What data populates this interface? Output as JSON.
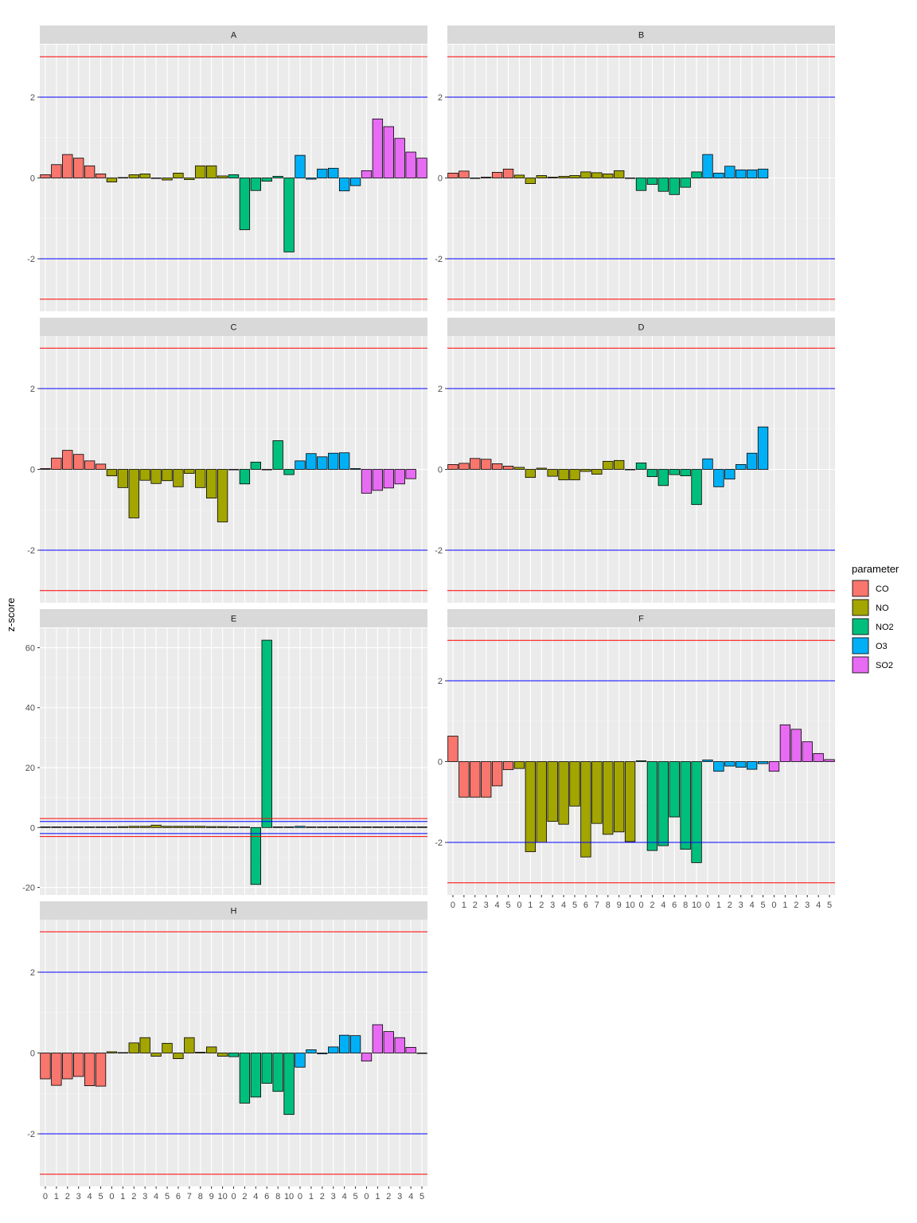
{
  "chart_data": {
    "type": "bar",
    "ylabel": "z-score",
    "xlabel": "",
    "x_tick_labels": [
      "0",
      "1",
      "2",
      "3",
      "4",
      "5",
      "0",
      "1",
      "2",
      "3",
      "4",
      "5",
      "6",
      "7",
      "8",
      "9",
      "10",
      "0",
      "2",
      "4",
      "6",
      "8",
      "10",
      "0",
      "1",
      "2",
      "3",
      "4",
      "5",
      "0",
      "1",
      "2",
      "3",
      "4",
      "5"
    ],
    "x_tick_parameter": [
      "CO",
      "CO",
      "CO",
      "CO",
      "CO",
      "CO",
      "NO",
      "NO",
      "NO",
      "NO",
      "NO",
      "NO",
      "NO",
      "NO",
      "NO",
      "NO",
      "NO",
      "NO2",
      "NO2",
      "NO2",
      "NO2",
      "NO2",
      "NO2",
      "O3",
      "O3",
      "O3",
      "O3",
      "O3",
      "O3",
      "SO2",
      "SO2",
      "SO2",
      "SO2",
      "SO2",
      "SO2"
    ],
    "reference_lines": [
      {
        "y": 3,
        "color": "#ff0000"
      },
      {
        "y": 2,
        "color": "#0000ff"
      },
      {
        "y": -2,
        "color": "#0000ff"
      },
      {
        "y": -3,
        "color": "#ff0000"
      }
    ],
    "legend": {
      "title": "parameter",
      "position": "right",
      "items": [
        {
          "label": "CO",
          "color": "#F8766D"
        },
        {
          "label": "NO",
          "color": "#A3A500"
        },
        {
          "label": "NO2",
          "color": "#00BF7D"
        },
        {
          "label": "O3",
          "color": "#00B0F6"
        },
        {
          "label": "SO2",
          "color": "#E76BF3"
        }
      ]
    },
    "panels": [
      {
        "strip": "A",
        "ylim": [
          -3.3,
          3.3
        ],
        "yticks": [
          -2,
          0,
          2
        ],
        "values": [
          0.08,
          0.33,
          0.58,
          0.49,
          0.3,
          0.1,
          -0.1,
          0.01,
          0.08,
          0.1,
          0.0,
          -0.05,
          0.12,
          -0.04,
          0.3,
          0.3,
          0.05,
          0.08,
          -1.28,
          -0.31,
          -0.08,
          0.04,
          -1.83,
          0.56,
          -0.03,
          0.22,
          0.24,
          -0.32,
          -0.19,
          0.18,
          1.46,
          1.27,
          0.98,
          0.64,
          0.49
        ]
      },
      {
        "strip": "B",
        "ylim": [
          -3.3,
          3.3
        ],
        "yticks": [
          -2,
          0,
          2
        ],
        "values": [
          0.12,
          0.17,
          0.0,
          0.02,
          0.14,
          0.22,
          0.07,
          -0.14,
          0.06,
          0.02,
          0.04,
          0.06,
          0.15,
          0.13,
          0.1,
          0.18,
          0.0,
          -0.31,
          -0.16,
          -0.33,
          -0.41,
          -0.23,
          0.15,
          0.58,
          0.12,
          0.29,
          0.2,
          0.2,
          0.22,
          null,
          null,
          null,
          null,
          null,
          null
        ]
      },
      {
        "strip": "C",
        "ylim": [
          -3.3,
          3.3
        ],
        "yticks": [
          -2,
          0,
          2
        ],
        "values": [
          0.02,
          0.28,
          0.47,
          0.37,
          0.21,
          0.13,
          -0.16,
          -0.45,
          -1.2,
          -0.27,
          -0.35,
          -0.28,
          -0.43,
          -0.1,
          -0.45,
          -0.71,
          -1.3,
          0.0,
          -0.36,
          0.18,
          0.0,
          0.71,
          -0.13,
          0.21,
          0.39,
          0.31,
          0.4,
          0.41,
          0.02,
          -0.59,
          -0.52,
          -0.46,
          -0.36,
          -0.23,
          null
        ]
      },
      {
        "strip": "D",
        "ylim": [
          -3.3,
          3.3
        ],
        "yticks": [
          -2,
          0,
          2
        ],
        "values": [
          0.12,
          0.15,
          0.27,
          0.25,
          0.14,
          0.08,
          0.05,
          -0.2,
          0.03,
          -0.17,
          -0.26,
          -0.26,
          -0.05,
          -0.12,
          0.2,
          0.22,
          0.0,
          0.16,
          -0.18,
          -0.4,
          -0.13,
          -0.16,
          -0.87,
          0.26,
          -0.43,
          -0.24,
          0.12,
          0.4,
          1.05,
          null,
          null,
          null,
          null,
          null,
          null
        ]
      },
      {
        "strip": "E",
        "ylim": [
          -22.5,
          66.5
        ],
        "yticks": [
          -20,
          0,
          20,
          40,
          60
        ],
        "values": [
          0.2,
          0.2,
          0.2,
          0.2,
          0.2,
          0.2,
          0.2,
          0.3,
          0.4,
          0.4,
          0.8,
          0.4,
          0.4,
          0.4,
          0.4,
          0.3,
          0.3,
          0.2,
          0.2,
          -19.0,
          62.5,
          0.2,
          0.2,
          0.4,
          0.2,
          0.2,
          0.2,
          0.2,
          0.2,
          0.2,
          0.2,
          0.2,
          0.2,
          0.2,
          0.2
        ]
      },
      {
        "strip": "F",
        "ylim": [
          -3.3,
          3.3
        ],
        "yticks": [
          -2,
          0,
          2
        ],
        "values": [
          0.63,
          -0.88,
          -0.88,
          -0.88,
          -0.6,
          -0.2,
          -0.17,
          -2.23,
          -2.0,
          -1.48,
          -1.55,
          -1.1,
          -2.36,
          -1.53,
          -1.8,
          -1.74,
          -1.98,
          0.02,
          -2.2,
          -2.08,
          -1.37,
          -2.17,
          -2.5,
          0.04,
          -0.24,
          -0.11,
          -0.14,
          -0.19,
          -0.05,
          -0.24,
          0.91,
          0.8,
          0.49,
          0.2,
          0.05
        ]
      },
      {
        "strip": "H",
        "ylim": [
          -3.3,
          3.3
        ],
        "yticks": [
          -2,
          0,
          2
        ],
        "values": [
          -0.64,
          -0.8,
          -0.64,
          -0.58,
          -0.81,
          -0.82,
          0.03,
          0.01,
          0.25,
          0.38,
          -0.08,
          0.24,
          -0.14,
          0.38,
          0.02,
          0.15,
          -0.08,
          -0.09,
          -1.24,
          -1.09,
          -0.75,
          -0.95,
          -1.52,
          -0.35,
          0.08,
          -0.02,
          0.15,
          0.44,
          0.43,
          -0.2,
          0.7,
          0.53,
          0.38,
          0.14,
          0.0
        ]
      }
    ]
  }
}
